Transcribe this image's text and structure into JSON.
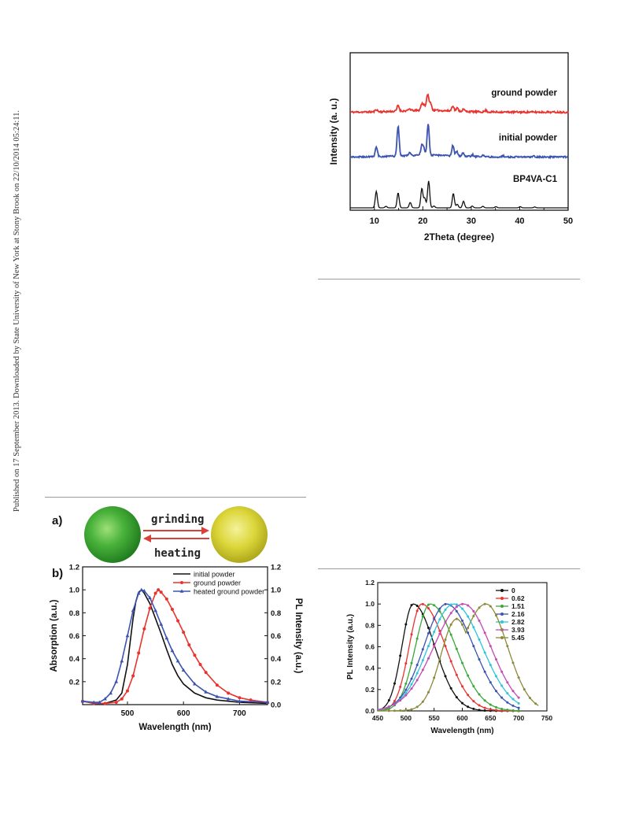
{
  "side_note": "Published on 17 September 2013. Downloaded by State University of New York at Stony Brook on 22/10/2014 05:24:11.",
  "colors": {
    "red": "#e8332f",
    "blue": "#3b54b0",
    "black": "#111111",
    "rule": "#9a9a9a"
  },
  "photo_scheme": {
    "label_a": "a)",
    "label_b": "b)",
    "left_photo": "green powder photo",
    "right_photo": "yellow powder photo",
    "forward_label": "grinding",
    "reverse_label": "heating",
    "arrow_color": "#d9403a"
  },
  "chart_data": [
    {
      "id": "xrd",
      "type": "line",
      "xlabel": "2Theta (degree)",
      "ylabel": "Intensity (a. u.)",
      "xlim": [
        5,
        50
      ],
      "x_ticks": [
        "10",
        "20",
        "30",
        "40",
        "50"
      ],
      "series": [
        {
          "name": "ground powder",
          "color": "#e8332f",
          "offset": 3.2,
          "baseline_noise": 0.03,
          "peaks": [
            [
              10.4,
              0.08
            ],
            [
              14.9,
              0.2
            ],
            [
              17.3,
              0.06
            ],
            [
              19.8,
              0.22
            ],
            [
              20.3,
              0.18
            ],
            [
              21.0,
              0.55
            ],
            [
              21.6,
              0.25
            ],
            [
              26.2,
              0.18
            ],
            [
              27.1,
              0.1
            ],
            [
              28.4,
              0.07
            ],
            [
              33.0,
              0.05
            ]
          ]
        },
        {
          "name": "initial powder",
          "color": "#3b54b0",
          "offset": 1.7,
          "baseline_noise": 0.025,
          "peaks": [
            [
              10.4,
              0.33
            ],
            [
              14.9,
              1.0
            ],
            [
              17.3,
              0.12
            ],
            [
              19.8,
              0.32
            ],
            [
              20.2,
              0.22
            ],
            [
              21.1,
              1.05
            ],
            [
              26.2,
              0.35
            ],
            [
              27.0,
              0.15
            ],
            [
              28.3,
              0.12
            ],
            [
              30.3,
              0.06
            ],
            [
              32.5,
              0.05
            ],
            [
              36.6,
              0.04
            ],
            [
              42.9,
              0.04
            ]
          ]
        },
        {
          "name": "BP4VA-C1",
          "color": "#111111",
          "offset": 0.0,
          "baseline_noise": 0.0,
          "peaks": [
            [
              10.4,
              0.55
            ],
            [
              12.4,
              0.05
            ],
            [
              14.9,
              0.5
            ],
            [
              17.4,
              0.18
            ],
            [
              19.8,
              0.65
            ],
            [
              20.4,
              0.32
            ],
            [
              21.2,
              0.9
            ],
            [
              22.3,
              0.06
            ],
            [
              26.3,
              0.48
            ],
            [
              27.1,
              0.12
            ],
            [
              28.4,
              0.22
            ],
            [
              30.2,
              0.06
            ],
            [
              32.4,
              0.05
            ],
            [
              35.1,
              0.04
            ],
            [
              40.1,
              0.04
            ],
            [
              43.1,
              0.03
            ]
          ]
        }
      ]
    },
    {
      "id": "abs_pl",
      "type": "line",
      "xlabel": "Wavelength (nm)",
      "ylabel": "Absorption (a.u.)",
      "ylabel_right": "PL Intensity (a.u.)",
      "xlim": [
        420,
        750
      ],
      "ylim": [
        0,
        1.2
      ],
      "x_ticks": [
        "500",
        "600",
        "700"
      ],
      "y_ticks_left": [
        "0.2",
        "0.4",
        "0.6",
        "0.8",
        "1.0",
        "1.2"
      ],
      "y_ticks_right": [
        "0.0",
        "0.2",
        "0.4",
        "0.6",
        "0.8",
        "1.0",
        "1.2"
      ],
      "legend_position": "top-right",
      "series": [
        {
          "name": "initial powder",
          "color": "#111111",
          "marker": "none",
          "x": [
            420,
            440,
            460,
            480,
            490,
            500,
            505,
            510,
            515,
            520,
            525,
            530,
            540,
            550,
            560,
            570,
            580,
            590,
            600,
            620,
            640,
            660,
            700,
            750
          ],
          "y": [
            0.03,
            0.01,
            0.01,
            0.04,
            0.1,
            0.35,
            0.55,
            0.75,
            0.9,
            0.98,
            1.0,
            0.97,
            0.88,
            0.75,
            0.62,
            0.48,
            0.35,
            0.25,
            0.18,
            0.1,
            0.06,
            0.04,
            0.02,
            0.01
          ]
        },
        {
          "name": "ground powder",
          "color": "#e8332f",
          "marker": "dot",
          "x": [
            420,
            440,
            460,
            480,
            490,
            500,
            510,
            520,
            530,
            540,
            550,
            555,
            560,
            570,
            580,
            590,
            600,
            610,
            620,
            630,
            640,
            660,
            680,
            700,
            720,
            750
          ],
          "y": [
            0.03,
            0.01,
            0.01,
            0.02,
            0.05,
            0.12,
            0.25,
            0.45,
            0.66,
            0.84,
            0.97,
            1.0,
            0.98,
            0.92,
            0.83,
            0.73,
            0.63,
            0.52,
            0.43,
            0.35,
            0.28,
            0.17,
            0.1,
            0.06,
            0.04,
            0.02
          ]
        },
        {
          "name": "heated ground powder",
          "color": "#3b54b0",
          "marker": "triangle",
          "x": [
            420,
            440,
            450,
            460,
            470,
            480,
            490,
            500,
            510,
            520,
            525,
            530,
            540,
            550,
            560,
            570,
            580,
            590,
            600,
            620,
            640,
            660,
            680,
            700,
            750
          ],
          "y": [
            0.03,
            0.02,
            0.02,
            0.05,
            0.1,
            0.2,
            0.38,
            0.6,
            0.82,
            0.97,
            1.0,
            0.99,
            0.93,
            0.82,
            0.7,
            0.58,
            0.47,
            0.38,
            0.3,
            0.18,
            0.11,
            0.07,
            0.05,
            0.03,
            0.02
          ]
        }
      ]
    },
    {
      "id": "pl_series",
      "type": "line",
      "xlabel": "Wavelength (nm)",
      "ylabel": "PL Intensity (a.u.)",
      "xlim": [
        450,
        750
      ],
      "ylim": [
        0,
        1.2
      ],
      "x_ticks": [
        "450",
        "500",
        "550",
        "600",
        "650",
        "700",
        "750"
      ],
      "y_ticks": [
        "0.0",
        "0.2",
        "0.4",
        "0.6",
        "0.8",
        "1.0",
        "1.2"
      ],
      "legend_position": "top-right",
      "series": [
        {
          "name": "0",
          "color": "#111111",
          "peak": 513,
          "sigma_left": 20,
          "sigma_right": 38,
          "shoulder": 0.0,
          "end": 700
        },
        {
          "name": "0.62",
          "color": "#e8332f",
          "peak": 528,
          "sigma_left": 22,
          "sigma_right": 42,
          "shoulder": 0.0,
          "end": 700
        },
        {
          "name": "1.51",
          "color": "#3aa83a",
          "peak": 543,
          "sigma_left": 26,
          "sigma_right": 45,
          "shoulder": 0.0,
          "end": 700
        },
        {
          "name": "2.16",
          "color": "#3b54b0",
          "peak": 572,
          "sigma_left": 40,
          "sigma_right": 48,
          "shoulder": 0.0,
          "end": 700
        },
        {
          "name": "2.82",
          "color": "#2ec4d9",
          "peak": 585,
          "sigma_left": 45,
          "sigma_right": 50,
          "shoulder": 0.0,
          "end": 700
        },
        {
          "name": "3.93",
          "color": "#c44bb5",
          "peak": 602,
          "sigma_left": 52,
          "sigma_right": 48,
          "shoulder": 0.0,
          "end": 700
        },
        {
          "name": "5.45",
          "color": "#8b8a3a",
          "peak": 642,
          "sigma_left": 45,
          "sigma_right": 38,
          "shoulder": 0.8,
          "end": 735
        }
      ]
    }
  ]
}
